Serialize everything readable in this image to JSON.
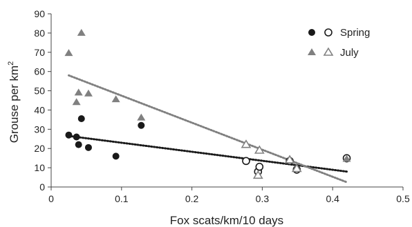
{
  "chart_data": {
    "type": "scatter",
    "xlabel": "Fox scats/km/10 days",
    "ylabel": "Grouse per km",
    "ylabel_superscript": "2",
    "xlim": [
      0,
      0.5
    ],
    "ylim": [
      0,
      90
    ],
    "xticks": [
      "0",
      "0.1",
      "0.2",
      "0.3",
      "0.4",
      "0.5"
    ],
    "yticks": [
      "0",
      "10",
      "20",
      "30",
      "40",
      "50",
      "60",
      "70",
      "80",
      "90"
    ],
    "grid": false,
    "legend_position": "top-right",
    "series": [
      {
        "name": "Spring",
        "color": "#1a1a1a",
        "marker": "circle",
        "points_filled": [
          {
            "x": 0.025,
            "y": 27
          },
          {
            "x": 0.036,
            "y": 26
          },
          {
            "x": 0.039,
            "y": 22
          },
          {
            "x": 0.043,
            "y": 35.5
          },
          {
            "x": 0.053,
            "y": 20.5
          },
          {
            "x": 0.092,
            "y": 16
          },
          {
            "x": 0.128,
            "y": 32
          },
          {
            "x": 0.42,
            "y": 14.5
          }
        ],
        "points_open": [
          {
            "x": 0.277,
            "y": 13.5
          },
          {
            "x": 0.294,
            "y": 8
          },
          {
            "x": 0.296,
            "y": 10.5
          },
          {
            "x": 0.339,
            "y": 13.5
          },
          {
            "x": 0.349,
            "y": 9
          },
          {
            "x": 0.42,
            "y": 15
          }
        ],
        "trendline": {
          "x": [
            0.025,
            0.42
          ],
          "y": [
            26.5,
            8
          ]
        }
      },
      {
        "name": "July",
        "color": "#808080",
        "marker": "triangle",
        "points_filled": [
          {
            "x": 0.025,
            "y": 69.5
          },
          {
            "x": 0.036,
            "y": 44
          },
          {
            "x": 0.039,
            "y": 49
          },
          {
            "x": 0.043,
            "y": 80
          },
          {
            "x": 0.053,
            "y": 48.5
          },
          {
            "x": 0.092,
            "y": 45.5
          },
          {
            "x": 0.128,
            "y": 36
          },
          {
            "x": 0.42,
            "y": 14.5
          }
        ],
        "points_open": [
          {
            "x": 0.277,
            "y": 22
          },
          {
            "x": 0.294,
            "y": 6
          },
          {
            "x": 0.296,
            "y": 19
          },
          {
            "x": 0.339,
            "y": 14
          },
          {
            "x": 0.349,
            "y": 9.5
          }
        ],
        "trendline": {
          "x": [
            0.025,
            0.42
          ],
          "y": [
            58,
            2.5
          ]
        }
      }
    ]
  }
}
